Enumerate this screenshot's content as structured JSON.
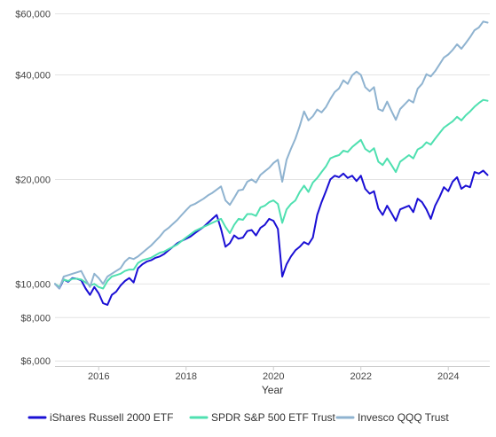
{
  "chart_data": {
    "type": "line",
    "title": "",
    "xlabel": "Year",
    "ylabel": "",
    "y_scale": "log",
    "xlim": [
      2015.0,
      2024.9
    ],
    "ylim": [
      5800,
      62000
    ],
    "y_ticks": [
      {
        "value": 6000,
        "label": "$6,000"
      },
      {
        "value": 8000,
        "label": "$8,000"
      },
      {
        "value": 10000,
        "label": "$10,000"
      },
      {
        "value": 20000,
        "label": "$20,000"
      },
      {
        "value": 40000,
        "label": "$40,000"
      },
      {
        "value": 60000,
        "label": "$60,000"
      }
    ],
    "x_ticks": [
      {
        "value": 2016,
        "label": "2016"
      },
      {
        "value": 2018,
        "label": "2018"
      },
      {
        "value": 2020,
        "label": "2020"
      },
      {
        "value": 2022,
        "label": "2022"
      },
      {
        "value": 2024,
        "label": "2024"
      }
    ],
    "grid": "horizontal",
    "legend": "bottom",
    "x": [
      2015.0,
      2015.1,
      2015.2,
      2015.3,
      2015.4,
      2015.5,
      2015.6,
      2015.7,
      2015.8,
      2015.9,
      2016.0,
      2016.1,
      2016.2,
      2016.3,
      2016.4,
      2016.5,
      2016.6,
      2016.7,
      2016.8,
      2016.9,
      2017.0,
      2017.1,
      2017.2,
      2017.3,
      2017.4,
      2017.5,
      2017.6,
      2017.7,
      2017.8,
      2017.9,
      2018.0,
      2018.1,
      2018.2,
      2018.3,
      2018.4,
      2018.5,
      2018.6,
      2018.7,
      2018.8,
      2018.9,
      2019.0,
      2019.1,
      2019.2,
      2019.3,
      2019.4,
      2019.5,
      2019.6,
      2019.7,
      2019.8,
      2019.9,
      2020.0,
      2020.1,
      2020.2,
      2020.3,
      2020.4,
      2020.5,
      2020.6,
      2020.7,
      2020.8,
      2020.9,
      2021.0,
      2021.1,
      2021.2,
      2021.3,
      2021.4,
      2021.5,
      2021.6,
      2021.7,
      2021.8,
      2021.9,
      2022.0,
      2022.1,
      2022.2,
      2022.3,
      2022.4,
      2022.5,
      2022.6,
      2022.7,
      2022.8,
      2022.9,
      2023.0,
      2023.1,
      2023.2,
      2023.3,
      2023.4,
      2023.5,
      2023.6,
      2023.7,
      2023.8,
      2023.9,
      2024.0,
      2024.1,
      2024.2,
      2024.3,
      2024.4,
      2024.5,
      2024.6,
      2024.7,
      2024.8,
      2024.9
    ],
    "series": [
      {
        "name": "iShares Russell 2000 ETF",
        "color": "#1a0fd4",
        "values": [
          10000,
          9700,
          10300,
          10150,
          10400,
          10350,
          10250,
          9700,
          9300,
          9800,
          9400,
          8800,
          8700,
          9300,
          9500,
          9900,
          10200,
          10400,
          10100,
          11100,
          11400,
          11600,
          11700,
          11900,
          12000,
          12200,
          12500,
          12800,
          13100,
          13300,
          13500,
          13700,
          14000,
          14300,
          14600,
          15000,
          15400,
          15800,
          14400,
          12800,
          13100,
          13800,
          13500,
          13600,
          14200,
          14300,
          13800,
          14500,
          14800,
          15400,
          15200,
          14400,
          10500,
          11400,
          12000,
          12500,
          12800,
          13200,
          13000,
          13600,
          15800,
          17200,
          18500,
          20000,
          20500,
          20300,
          20800,
          20200,
          20500,
          19800,
          20500,
          18800,
          18200,
          18500,
          16500,
          15800,
          16800,
          16000,
          15200,
          16400,
          16600,
          16800,
          16100,
          17600,
          17200,
          16400,
          15400,
          16800,
          17800,
          19000,
          18500,
          19700,
          20300,
          18800,
          19200,
          19000,
          21000,
          20800,
          21200,
          20600
        ]
      },
      {
        "name": "SPDR S&P 500 ETF Trust",
        "color": "#4fe0b0",
        "values": [
          10000,
          9800,
          10300,
          10200,
          10350,
          10350,
          10300,
          10100,
          9900,
          10000,
          9800,
          9700,
          10200,
          10500,
          10600,
          10700,
          10900,
          11000,
          11000,
          11500,
          11700,
          11800,
          11900,
          12100,
          12300,
          12400,
          12600,
          12800,
          13000,
          13300,
          13600,
          13900,
          14200,
          14400,
          14600,
          14800,
          15000,
          15200,
          15400,
          14600,
          14000,
          14800,
          15400,
          15300,
          15900,
          15900,
          15700,
          16600,
          16800,
          17200,
          17400,
          17000,
          15000,
          16400,
          17000,
          17400,
          18400,
          19200,
          18400,
          19600,
          20200,
          21000,
          21800,
          23000,
          23300,
          23500,
          24200,
          24000,
          24800,
          25400,
          26000,
          24500,
          24000,
          24600,
          22500,
          22000,
          23000,
          22000,
          21000,
          22500,
          23000,
          23500,
          23000,
          24400,
          24800,
          25600,
          25200,
          26200,
          27200,
          28200,
          28800,
          29400,
          30300,
          29600,
          30600,
          31400,
          32400,
          33200,
          33900,
          33700
        ]
      },
      {
        "name": "Invesco QQQ Trust",
        "color": "#8fb3d0",
        "values": [
          10000,
          9700,
          10500,
          10600,
          10700,
          10800,
          10900,
          10300,
          9800,
          10700,
          10400,
          10000,
          10500,
          10700,
          10900,
          11100,
          11600,
          11900,
          11800,
          12000,
          12300,
          12600,
          12900,
          13300,
          13700,
          14200,
          14500,
          14900,
          15300,
          15800,
          16300,
          16800,
          17000,
          17300,
          17600,
          18000,
          18300,
          18700,
          19100,
          17400,
          16900,
          17700,
          18600,
          18700,
          19700,
          20000,
          19600,
          20600,
          21100,
          21600,
          22300,
          22800,
          19700,
          22800,
          24500,
          26200,
          28500,
          31400,
          29600,
          30400,
          31800,
          31200,
          32300,
          34100,
          35700,
          36600,
          38600,
          37700,
          39900,
          40900,
          40000,
          36900,
          35900,
          36900,
          31900,
          31500,
          33500,
          31500,
          29700,
          31900,
          32900,
          33900,
          33300,
          36500,
          37700,
          40200,
          39600,
          41000,
          42900,
          44900,
          45800,
          47200,
          49000,
          47600,
          49400,
          51400,
          53800,
          54800,
          57000,
          56600
        ]
      }
    ]
  }
}
